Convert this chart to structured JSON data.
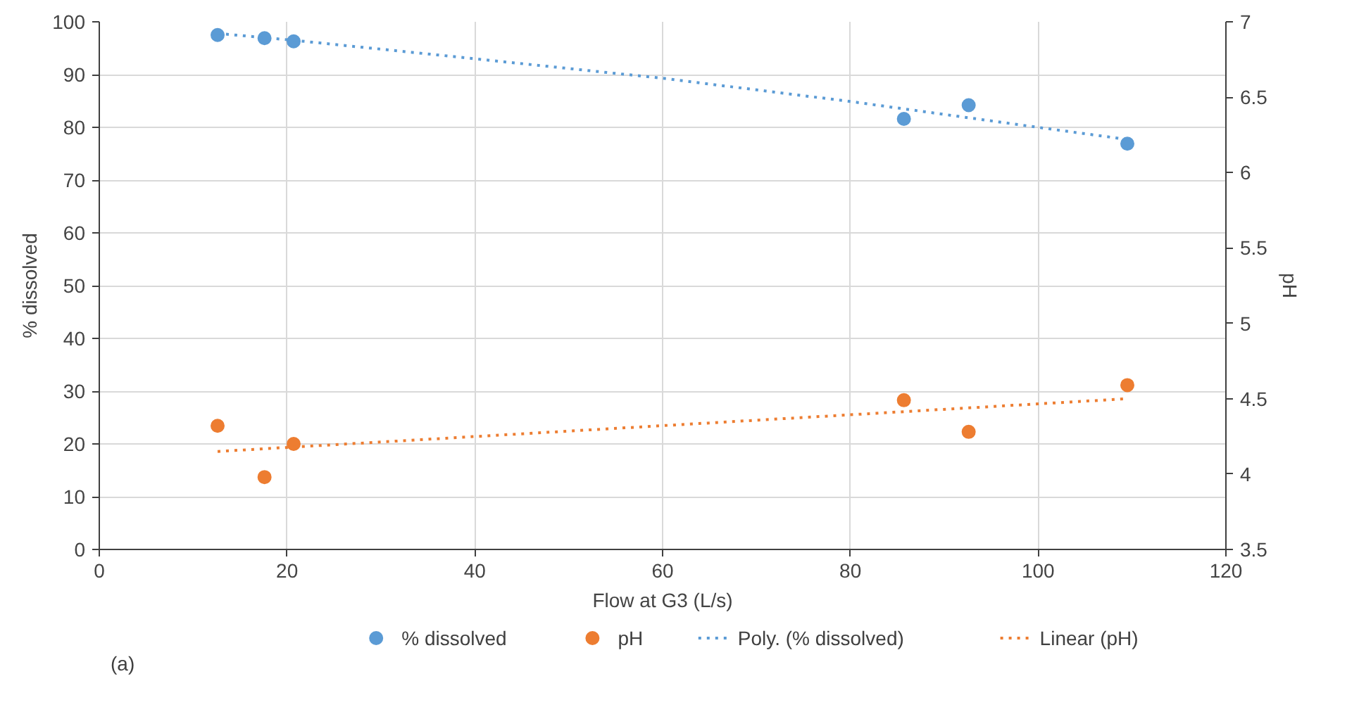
{
  "chart_data": {
    "type": "scatter",
    "xlabel": "Flow at G3 (L/s)",
    "ylabel": "% dissolved",
    "y2label": "pH",
    "xlim": [
      0,
      120
    ],
    "xticks": [
      0,
      20,
      40,
      60,
      80,
      100,
      120
    ],
    "ylim": [
      0,
      100
    ],
    "yticks": [
      0,
      10,
      20,
      30,
      40,
      50,
      60,
      70,
      80,
      90,
      100
    ],
    "y2lim": [
      3.5,
      7
    ],
    "y2ticks": [
      3.5,
      4,
      4.5,
      5,
      5.5,
      6,
      6.5,
      7
    ],
    "grid": true,
    "legend": "bottom",
    "marker": "circle",
    "annotations": [
      "(a)"
    ],
    "series": [
      {
        "name": "% dissolved",
        "color": "#5b9bd5",
        "x": [
          12.6,
          17.6,
          20.7,
          85.7,
          92.6,
          109.5
        ],
        "values": [
          97.5,
          96.9,
          96.3,
          81.6,
          84.2,
          76.9
        ]
      },
      {
        "name": "pH",
        "axis": "y2",
        "color": "#ed7d31",
        "x": [
          12.6,
          17.6,
          20.7,
          85.7,
          92.6,
          109.5
        ],
        "values": [
          4.32,
          3.98,
          4.2,
          4.49,
          4.28,
          4.59
        ]
      },
      {
        "name": "Poly. (% dissolved)",
        "type": "line",
        "line_style": "dotted",
        "marker": "none",
        "color": "#5b9bd5",
        "x": [
          12.6,
          20.7,
          40,
          60,
          80,
          100,
          109.5
        ],
        "values": [
          97.8,
          96.5,
          93.0,
          89.3,
          84.9,
          80.0,
          77.7
        ]
      },
      {
        "name": "Linear (pH)",
        "type": "line",
        "line_style": "dotted",
        "marker": "none",
        "axis": "y2",
        "color": "#ed7d31",
        "x": [
          12.6,
          109.5
        ],
        "values": [
          4.15,
          4.5
        ]
      }
    ]
  }
}
